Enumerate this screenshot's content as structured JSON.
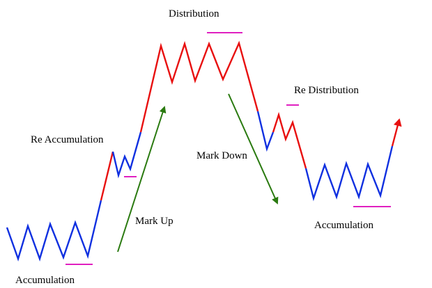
{
  "labels": {
    "distribution": "Distribution",
    "re_distribution": "Re Distribution",
    "re_accumulation": "Re Accumulation",
    "mark_down": "Mark Down",
    "mark_up": "Mark Up",
    "accumulation_left": "Accumulation",
    "accumulation_right": "Accumulation"
  },
  "colors": {
    "accumulation_line": "#1030e0",
    "trend_line": "#e81010",
    "arrow": "#2a7a10",
    "marker": "#e020c0",
    "text": "#000000"
  },
  "icons": {
    "mark_up_arrow": "arrow-up-right-icon",
    "mark_down_arrow": "arrow-down-right-icon",
    "breakout_arrow": "arrow-up-icon"
  }
}
